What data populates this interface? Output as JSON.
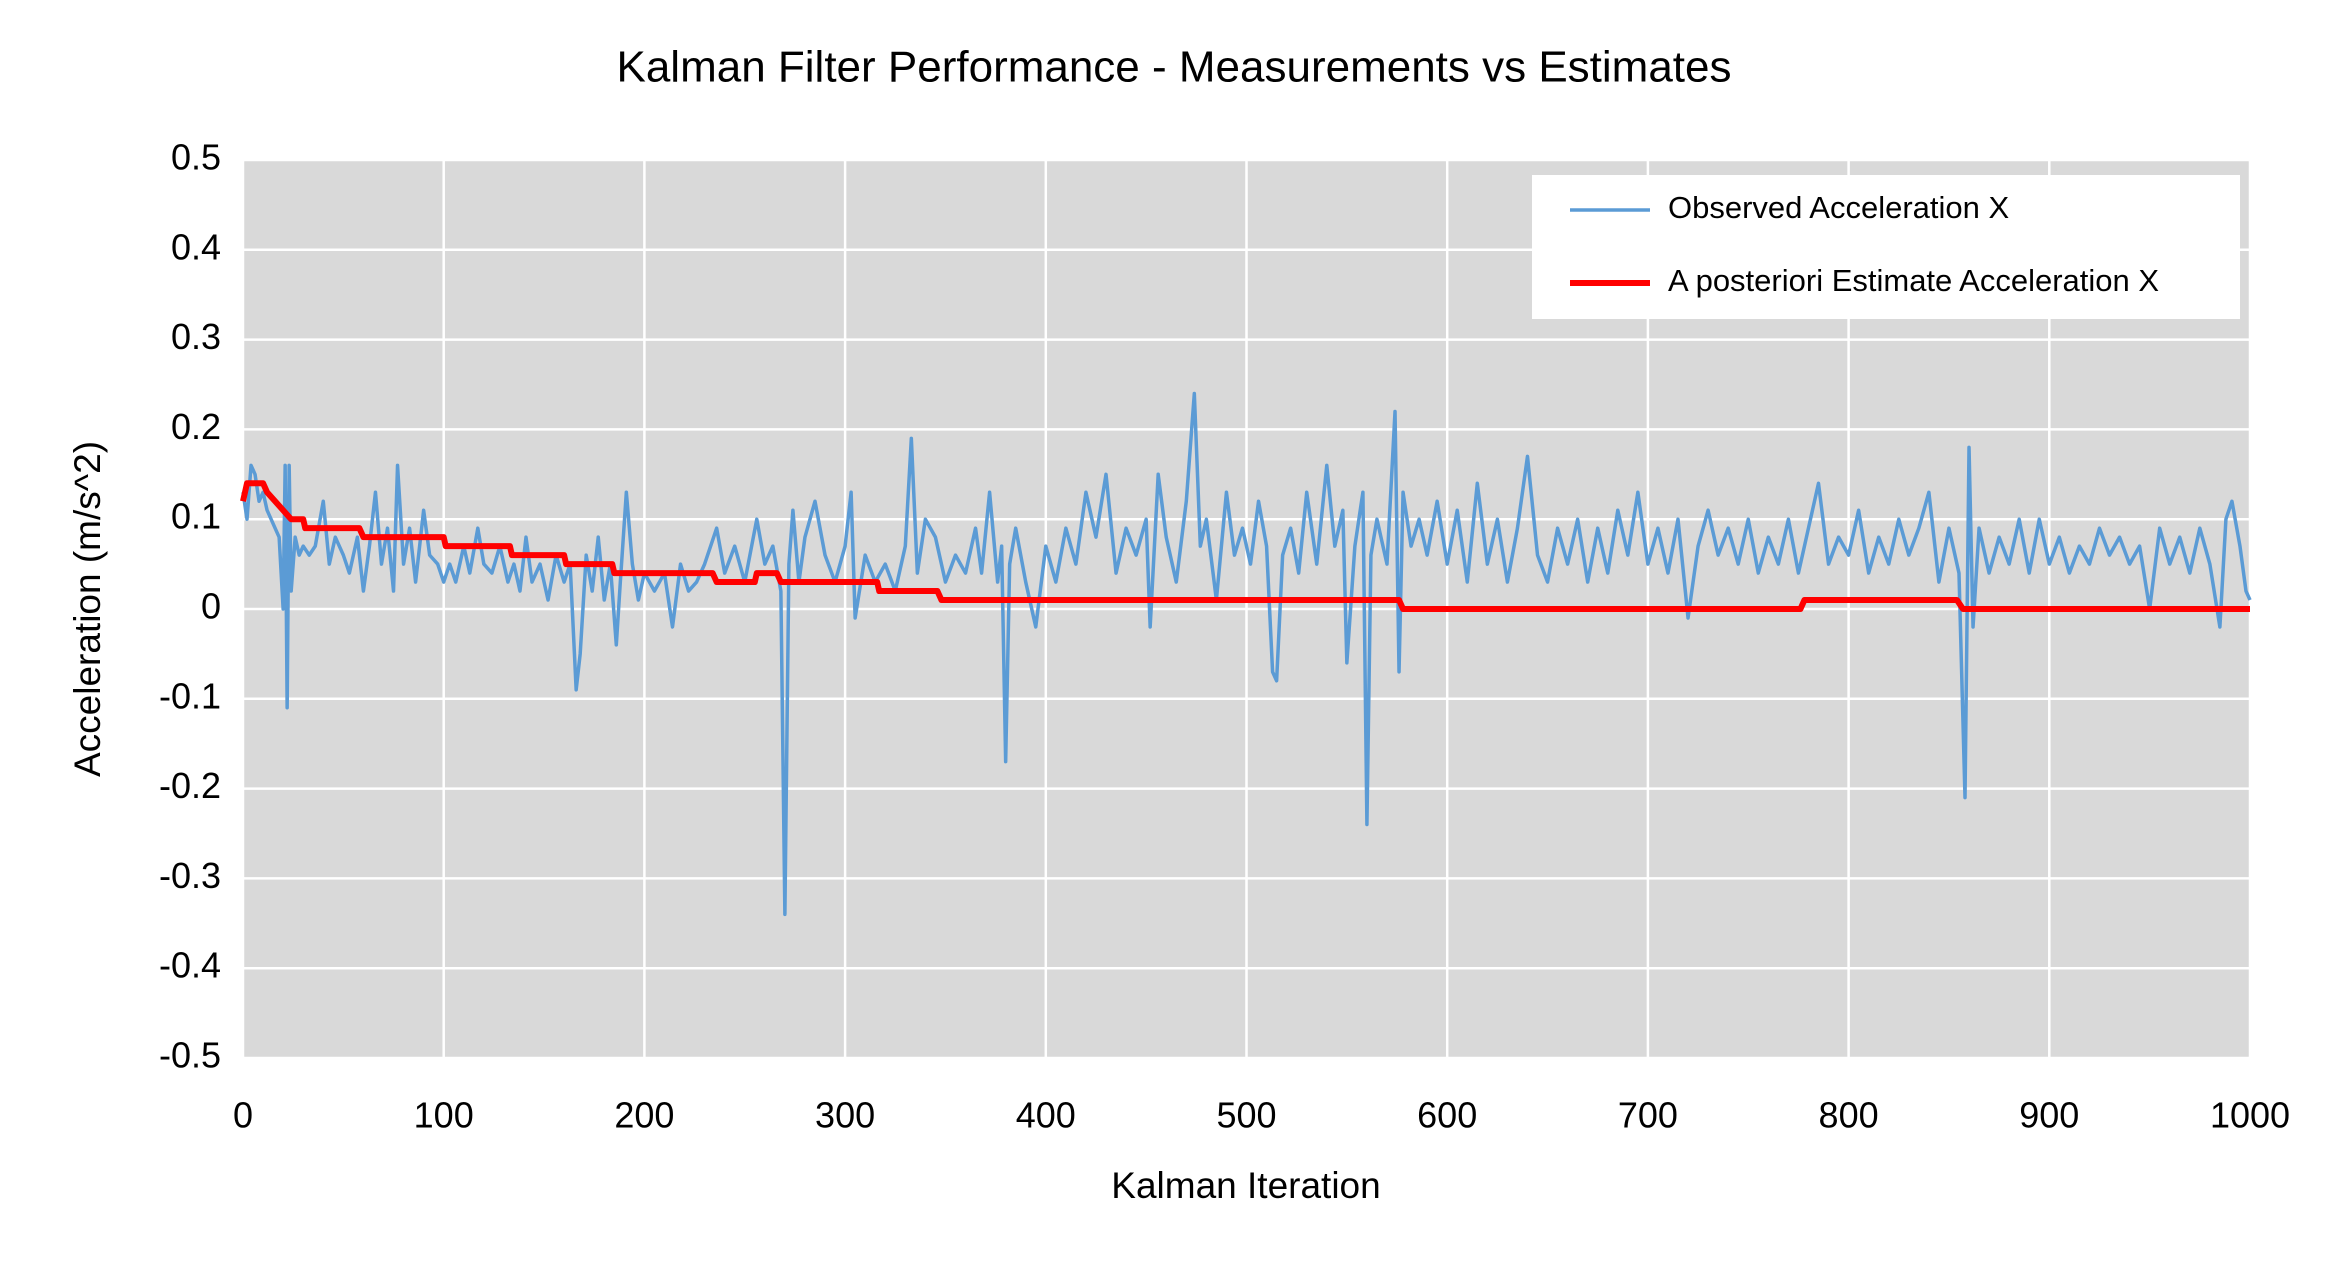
{
  "chart_data": {
    "type": "line",
    "title": "Kalman Filter Performance - Measurements vs Estimates",
    "x_label": "Kalman Iteration",
    "y_label": "Acceleration (m/s^2)",
    "xlim": [
      0,
      1000
    ],
    "xticks": [
      0,
      100,
      200,
      300,
      400,
      500,
      600,
      700,
      800,
      900,
      1000
    ],
    "ylim": [
      -0.5,
      0.5
    ],
    "yticks": [
      -0.5,
      -0.4,
      -0.3,
      -0.2,
      -0.1,
      0,
      0.1,
      0.2,
      0.3,
      0.4,
      0.5
    ],
    "grid": true,
    "legend": "upper right",
    "series": [
      {
        "name": "Observed Acceleration X",
        "color": "#5b9bd5",
        "x": [
          0,
          2,
          4,
          6,
          8,
          10,
          12,
          14,
          16,
          18,
          20,
          21,
          22,
          23,
          24,
          26,
          28,
          30,
          33,
          36,
          40,
          43,
          46,
          50,
          53,
          57,
          60,
          63,
          66,
          69,
          72,
          75,
          77,
          80,
          83,
          86,
          90,
          93,
          97,
          100,
          103,
          106,
          110,
          113,
          117,
          120,
          124,
          128,
          132,
          135,
          138,
          141,
          144,
          148,
          152,
          156,
          160,
          163,
          166,
          168,
          171,
          174,
          177,
          180,
          183,
          186,
          188,
          191,
          194,
          197,
          200,
          205,
          210,
          214,
          218,
          222,
          226,
          230,
          236,
          240,
          245,
          250,
          256,
          260,
          264,
          268,
          270,
          272,
          274,
          277,
          280,
          285,
          290,
          295,
          300,
          303,
          305,
          310,
          315,
          320,
          325,
          330,
          333,
          336,
          340,
          345,
          350,
          355,
          360,
          365,
          368,
          372,
          376,
          378,
          380,
          382,
          385,
          390,
          395,
          400,
          405,
          410,
          415,
          420,
          425,
          430,
          435,
          440,
          445,
          450,
          452,
          456,
          460,
          465,
          470,
          474,
          477,
          480,
          485,
          490,
          494,
          498,
          502,
          506,
          510,
          513,
          515,
          518,
          522,
          526,
          530,
          535,
          540,
          544,
          548,
          550,
          554,
          558,
          560,
          562,
          565,
          570,
          574,
          576,
          578,
          582,
          586,
          590,
          595,
          600,
          605,
          610,
          615,
          620,
          625,
          630,
          635,
          640,
          645,
          650,
          655,
          660,
          665,
          670,
          675,
          680,
          685,
          690,
          695,
          700,
          705,
          710,
          715,
          720,
          725,
          730,
          735,
          740,
          745,
          750,
          755,
          760,
          765,
          770,
          775,
          780,
          785,
          790,
          795,
          800,
          805,
          810,
          815,
          820,
          825,
          830,
          835,
          840,
          845,
          850,
          855,
          858,
          860,
          862,
          865,
          870,
          875,
          880,
          885,
          890,
          895,
          900,
          905,
          910,
          915,
          920,
          925,
          930,
          935,
          940,
          945,
          950,
          955,
          960,
          965,
          970,
          975,
          980,
          985,
          988,
          991,
          995,
          998,
          1000
        ],
        "values": [
          0.13,
          0.1,
          0.16,
          0.15,
          0.12,
          0.13,
          0.11,
          0.1,
          0.09,
          0.08,
          0.0,
          0.16,
          -0.11,
          0.16,
          0.02,
          0.08,
          0.06,
          0.07,
          0.06,
          0.07,
          0.12,
          0.05,
          0.08,
          0.06,
          0.04,
          0.08,
          0.02,
          0.07,
          0.13,
          0.05,
          0.09,
          0.02,
          0.16,
          0.05,
          0.09,
          0.03,
          0.11,
          0.06,
          0.05,
          0.03,
          0.05,
          0.03,
          0.07,
          0.04,
          0.09,
          0.05,
          0.04,
          0.07,
          0.03,
          0.05,
          0.02,
          0.08,
          0.03,
          0.05,
          0.01,
          0.06,
          0.03,
          0.05,
          -0.09,
          -0.05,
          0.06,
          0.02,
          0.08,
          0.01,
          0.05,
          -0.04,
          0.03,
          0.13,
          0.05,
          0.01,
          0.04,
          0.02,
          0.04,
          -0.02,
          0.05,
          0.02,
          0.03,
          0.05,
          0.09,
          0.04,
          0.07,
          0.03,
          0.1,
          0.05,
          0.07,
          0.02,
          -0.34,
          0.05,
          0.11,
          0.03,
          0.08,
          0.12,
          0.06,
          0.03,
          0.07,
          0.13,
          -0.01,
          0.06,
          0.03,
          0.05,
          0.02,
          0.07,
          0.19,
          0.04,
          0.1,
          0.08,
          0.03,
          0.06,
          0.04,
          0.09,
          0.04,
          0.13,
          0.03,
          0.07,
          -0.17,
          0.05,
          0.09,
          0.03,
          -0.02,
          0.07,
          0.03,
          0.09,
          0.05,
          0.13,
          0.08,
          0.15,
          0.04,
          0.09,
          0.06,
          0.1,
          -0.02,
          0.15,
          0.08,
          0.03,
          0.12,
          0.24,
          0.07,
          0.1,
          0.01,
          0.13,
          0.06,
          0.09,
          0.05,
          0.12,
          0.07,
          -0.07,
          -0.08,
          0.06,
          0.09,
          0.04,
          0.13,
          0.05,
          0.16,
          0.07,
          0.11,
          -0.06,
          0.07,
          0.13,
          -0.24,
          0.06,
          0.1,
          0.05,
          0.22,
          -0.07,
          0.13,
          0.07,
          0.1,
          0.06,
          0.12,
          0.05,
          0.11,
          0.03,
          0.14,
          0.05,
          0.1,
          0.03,
          0.09,
          0.17,
          0.06,
          0.03,
          0.09,
          0.05,
          0.1,
          0.03,
          0.09,
          0.04,
          0.11,
          0.06,
          0.13,
          0.05,
          0.09,
          0.04,
          0.1,
          -0.01,
          0.07,
          0.11,
          0.06,
          0.09,
          0.05,
          0.1,
          0.04,
          0.08,
          0.05,
          0.1,
          0.04,
          0.09,
          0.14,
          0.05,
          0.08,
          0.06,
          0.11,
          0.04,
          0.08,
          0.05,
          0.1,
          0.06,
          0.09,
          0.13,
          0.03,
          0.09,
          0.04,
          -0.21,
          0.18,
          -0.02,
          0.09,
          0.04,
          0.08,
          0.05,
          0.1,
          0.04,
          0.1,
          0.05,
          0.08,
          0.04,
          0.07,
          0.05,
          0.09,
          0.06,
          0.08,
          0.05,
          0.07,
          0.0,
          0.09,
          0.05,
          0.08,
          0.04,
          0.09,
          0.05,
          -0.02,
          0.1,
          0.12,
          0.07,
          0.02,
          0.01
        ]
      },
      {
        "name": "A posteriori Estimate Acceleration X",
        "color": "#ff0000",
        "x": [
          0,
          2,
          10,
          12,
          16,
          20,
          24,
          30,
          31,
          58,
          60,
          100,
          101,
          133,
          134,
          160,
          161,
          184,
          185,
          234,
          236,
          255,
          256,
          266,
          268,
          316,
          317,
          346,
          348,
          576,
          578,
          776,
          778,
          854,
          857,
          1000
        ],
        "values": [
          0.12,
          0.14,
          0.14,
          0.13,
          0.12,
          0.11,
          0.1,
          0.1,
          0.09,
          0.09,
          0.08,
          0.08,
          0.07,
          0.07,
          0.06,
          0.06,
          0.05,
          0.05,
          0.04,
          0.04,
          0.03,
          0.03,
          0.04,
          0.04,
          0.03,
          0.03,
          0.02,
          0.02,
          0.01,
          0.01,
          0.0,
          0.0,
          0.01,
          0.01,
          0.0,
          0.0
        ]
      }
    ]
  }
}
